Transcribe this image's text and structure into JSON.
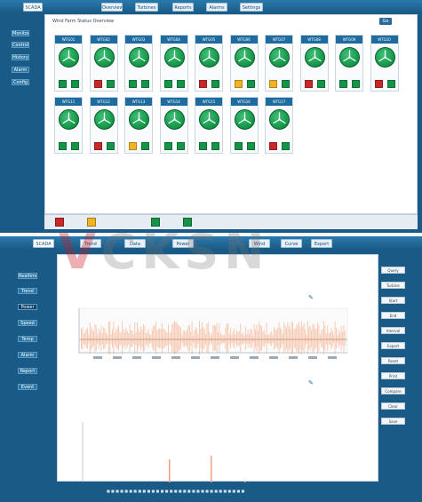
{
  "top_panel": {
    "tabs": [
      {
        "label": "SCADA"
      },
      {
        "label": "Overview"
      },
      {
        "label": "Turbines"
      },
      {
        "label": "Reports"
      },
      {
        "label": "Alarms"
      },
      {
        "label": "Settings"
      }
    ],
    "sidebar": [
      {
        "label": "Monitor"
      },
      {
        "label": "Control"
      },
      {
        "label": "History"
      },
      {
        "label": "Alarm"
      },
      {
        "label": "Config"
      }
    ],
    "breadcrumb": "Wind Farm Status Overview",
    "search_label": "Go",
    "turbines": [
      {
        "id": "WTG01",
        "status": "green",
        "ind": [
          "green",
          "green"
        ]
      },
      {
        "id": "WTG02",
        "status": "green",
        "ind": [
          "red",
          "green"
        ]
      },
      {
        "id": "WTG03",
        "status": "green",
        "ind": [
          "green",
          "green"
        ]
      },
      {
        "id": "WTG04",
        "status": "green",
        "ind": [
          "green",
          "green"
        ]
      },
      {
        "id": "WTG05",
        "status": "green",
        "ind": [
          "red",
          "green"
        ]
      },
      {
        "id": "WTG06",
        "status": "green",
        "ind": [
          "yellow",
          "green"
        ]
      },
      {
        "id": "WTG07",
        "status": "green",
        "ind": [
          "yellow",
          "green"
        ]
      },
      {
        "id": "WTG08",
        "status": "green",
        "ind": [
          "red",
          "green"
        ]
      },
      {
        "id": "WTG09",
        "status": "green",
        "ind": [
          "green",
          "green"
        ]
      },
      {
        "id": "WTG10",
        "status": "green",
        "ind": [
          "red",
          "green"
        ]
      },
      {
        "id": "WTG11",
        "status": "green",
        "ind": [
          "green",
          "green"
        ]
      },
      {
        "id": "WTG12",
        "status": "green",
        "ind": [
          "red",
          "green"
        ]
      },
      {
        "id": "WTG13",
        "status": "green",
        "ind": [
          "yellow",
          "green"
        ]
      },
      {
        "id": "WTG14",
        "status": "green",
        "ind": [
          "green",
          "green"
        ]
      },
      {
        "id": "WTG15",
        "status": "green",
        "ind": [
          "green",
          "green"
        ]
      },
      {
        "id": "WTG16",
        "status": "green",
        "ind": [
          "green",
          "green"
        ]
      },
      {
        "id": "WTG17",
        "status": "green",
        "ind": [
          "red",
          "green"
        ]
      }
    ],
    "legend": [
      "red",
      "yellow",
      "green",
      "green"
    ]
  },
  "bottom_panel": {
    "tabs": [
      {
        "label": "SCADA"
      },
      {
        "label": "Trend"
      },
      {
        "label": "Data"
      },
      {
        "label": "Power"
      },
      {
        "label": "Wind"
      },
      {
        "label": "Curve"
      },
      {
        "label": "Export"
      }
    ],
    "sidebar": [
      {
        "label": "Realtime"
      },
      {
        "label": "Trend"
      },
      {
        "label": "Power"
      },
      {
        "label": "Speed"
      },
      {
        "label": "Temp"
      },
      {
        "label": "Alarm"
      },
      {
        "label": "Report"
      },
      {
        "label": "Event"
      }
    ],
    "right_buttons": [
      {
        "label": "Query"
      },
      {
        "label": "Turbine"
      },
      {
        "label": "Start"
      },
      {
        "label": "End"
      },
      {
        "label": "Interval"
      },
      {
        "label": "Export"
      },
      {
        "label": "Reset"
      },
      {
        "label": "Print"
      },
      {
        "label": "Compare"
      },
      {
        "label": "Clear"
      },
      {
        "label": "Save"
      }
    ]
  },
  "colors": {
    "frame": "#1a5a86",
    "turbine_green": "#139447",
    "alarm_red": "#c62828",
    "warn_yellow": "#f0b323",
    "trend_orange": "#f2a27a"
  },
  "icons": [
    "turbine-dial-icon",
    "status-indicator-icon",
    "edit-icon"
  ]
}
